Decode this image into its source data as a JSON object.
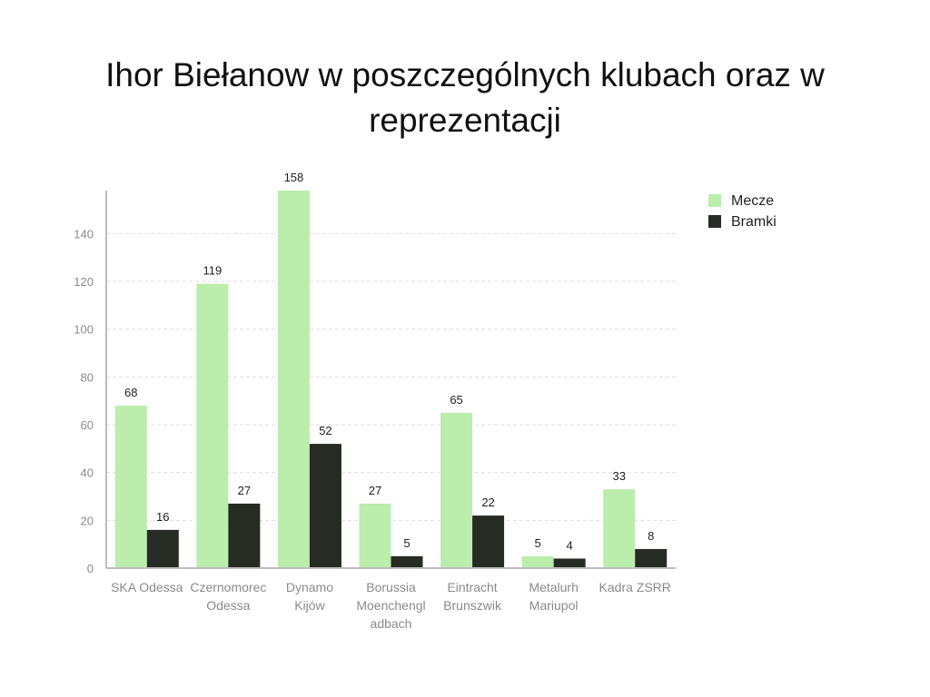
{
  "chart_data": {
    "type": "bar",
    "title": "Ihor Biełanow w poszczególnych klubach oraz w reprezentacji",
    "categories": [
      [
        "SKA Odessa"
      ],
      [
        "Czernomorec",
        "Odessa"
      ],
      [
        "Dynamo",
        "Kijów"
      ],
      [
        "Borussia",
        "Moenchengl",
        "adbach"
      ],
      [
        "Eintracht",
        "Brunszwik"
      ],
      [
        "Metalurh",
        "Mariupol"
      ],
      [
        "Kadra ZSRR"
      ]
    ],
    "series": [
      {
        "name": "Mecze",
        "color": "#bbedad",
        "values": [
          68,
          119,
          158,
          27,
          65,
          5,
          33
        ]
      },
      {
        "name": "Bramki",
        "color": "#262b24",
        "values": [
          16,
          27,
          52,
          5,
          22,
          4,
          8
        ]
      }
    ],
    "ylim": [
      0,
      158
    ],
    "yticks": [
      "0",
      "20",
      "40",
      "60",
      "80",
      "100",
      "120",
      "140"
    ],
    "grid": true,
    "legend": "top-right"
  }
}
